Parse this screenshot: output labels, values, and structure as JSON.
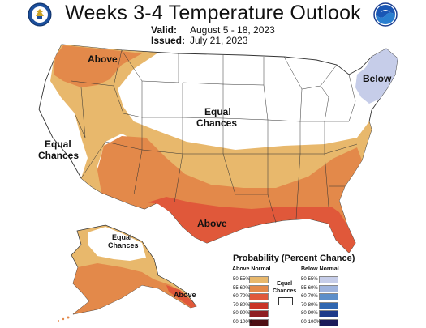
{
  "header": {
    "title": "Weeks 3-4 Temperature Outlook",
    "valid_label": "Valid:",
    "valid_value": "August 5 - 18, 2023",
    "issued_label": "Issued:",
    "issued_value": "July 21, 2023"
  },
  "map_labels": {
    "above_northwest": "Above",
    "equal_west_1": "Equal",
    "equal_west_2": "Chances",
    "equal_center_1": "Equal",
    "equal_center_2": "Chances",
    "below_northeast": "Below",
    "above_south": "Above",
    "equal_alaska_1": "Equal",
    "equal_alaska_2": "Chances",
    "above_alaska": "Above"
  },
  "legend": {
    "title": "Probability (Percent Chance)",
    "above_header": "Above Normal",
    "below_header": "Below Normal",
    "equal_label_1": "Equal",
    "equal_label_2": "Chances",
    "above": [
      {
        "label": "50-55%",
        "color": "#e8b86c"
      },
      {
        "label": "55-60%",
        "color": "#e3894a"
      },
      {
        "label": "60-70%",
        "color": "#e0583a"
      },
      {
        "label": "70-80%",
        "color": "#c93428"
      },
      {
        "label": "80-90%",
        "color": "#8e1f22"
      },
      {
        "label": "90-100%",
        "color": "#4e0f14"
      }
    ],
    "below": [
      {
        "label": "50-55%",
        "color": "#c6cde9"
      },
      {
        "label": "55-60%",
        "color": "#9fb4de"
      },
      {
        "label": "60-70%",
        "color": "#5c8ec9"
      },
      {
        "label": "70-80%",
        "color": "#2f66b0"
      },
      {
        "label": "80-90%",
        "color": "#1f3b8a"
      },
      {
        "label": "90-100%",
        "color": "#1b1b5a"
      }
    ]
  },
  "logos": [
    "commerce-seal-icon",
    "noaa-logo-icon"
  ]
}
